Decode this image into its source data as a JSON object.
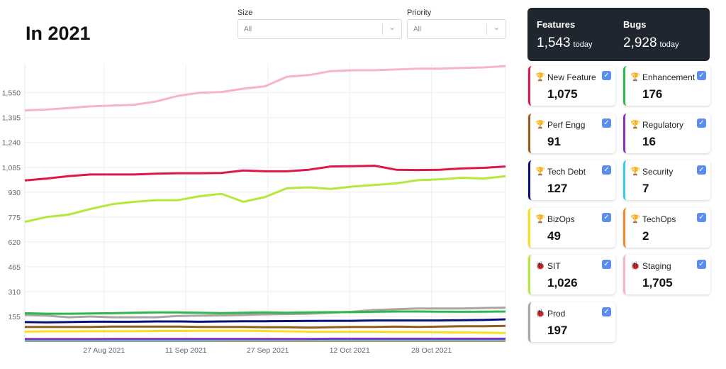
{
  "title": "In 2021",
  "filters": [
    {
      "label": "Size",
      "value": "All"
    },
    {
      "label": "Priority",
      "value": "All"
    }
  ],
  "summary": {
    "features_label": "Features",
    "features_value": "1,543",
    "bugs_label": "Bugs",
    "bugs_value": "2,928",
    "today": "today"
  },
  "cards": [
    {
      "name": "New Feature",
      "value": "1,075",
      "color": "#e0174a",
      "icon": "trophy-icon"
    },
    {
      "name": "Enhancement",
      "value": "176",
      "color": "#2eb84b",
      "icon": "trophy-icon"
    },
    {
      "name": "Perf Engg",
      "value": "91",
      "color": "#9a5a1e",
      "icon": "trophy-icon"
    },
    {
      "name": "Regulatory",
      "value": "16",
      "color": "#8e2fb8",
      "icon": "trophy-icon"
    },
    {
      "name": "Tech Debt",
      "value": "127",
      "color": "#0b0f7a",
      "icon": "trophy-icon"
    },
    {
      "name": "Security",
      "value": "7",
      "color": "#37cbe8",
      "icon": "trophy-icon"
    },
    {
      "name": "BizOps",
      "value": "49",
      "color": "#f5e11a",
      "icon": "trophy-icon"
    },
    {
      "name": "TechOps",
      "value": "2",
      "color": "#f08a2a",
      "icon": "trophy-icon"
    },
    {
      "name": "SIT",
      "value": "1,026",
      "color": "#b5e83a",
      "icon": "bug-icon"
    },
    {
      "name": "Staging",
      "value": "1,705",
      "color": "#f7b3c8",
      "icon": "bug-icon"
    },
    {
      "name": "Prod",
      "value": "197",
      "color": "#a6a6a6",
      "icon": "bug-icon"
    }
  ],
  "chart_data": {
    "type": "line",
    "x_start": "2021-08-12",
    "x_step_days": 4,
    "x_range_days": [
      0,
      91
    ],
    "xticks": [
      {
        "label": "27 Aug 2021",
        "day": 15
      },
      {
        "label": "11 Sep 2021",
        "day": 30.5
      },
      {
        "label": "27 Sep 2021",
        "day": 46
      },
      {
        "label": "12 Oct 2021",
        "day": 61.5
      },
      {
        "label": "28 Oct 2021",
        "day": 77
      }
    ],
    "yticks": [
      155,
      310,
      465,
      620,
      775,
      930,
      1085,
      1240,
      1395,
      1550
    ],
    "yticklabels": [
      "155",
      "310",
      "465",
      "620",
      "775",
      "930",
      "1,085",
      "1,240",
      "1,395",
      "1,550"
    ],
    "ylim": [
      0,
      1730
    ],
    "grid": true,
    "series": [
      {
        "name": "Staging",
        "color": "#f7b3c8",
        "values": [
          1440,
          1445,
          1455,
          1465,
          1470,
          1475,
          1495,
          1530,
          1550,
          1555,
          1575,
          1590,
          1650,
          1660,
          1685,
          1690,
          1690,
          1695,
          1700,
          1700,
          1705,
          1708,
          1716
        ]
      },
      {
        "name": "New Feature",
        "color": "#e0174a",
        "values": [
          1003,
          1015,
          1030,
          1040,
          1040,
          1040,
          1045,
          1048,
          1048,
          1050,
          1065,
          1060,
          1060,
          1070,
          1090,
          1092,
          1095,
          1070,
          1068,
          1070,
          1078,
          1082,
          1090
        ]
      },
      {
        "name": "SIT",
        "color": "#b5e83a",
        "values": [
          745,
          775,
          790,
          825,
          855,
          870,
          880,
          880,
          905,
          920,
          870,
          900,
          955,
          960,
          950,
          965,
          975,
          985,
          1005,
          1010,
          1020,
          1015,
          1030
        ]
      },
      {
        "name": "Enhancement",
        "color": "#2eb84b",
        "values": [
          175,
          172,
          172,
          174,
          175,
          178,
          180,
          180,
          178,
          176,
          178,
          180,
          178,
          180,
          182,
          182,
          184,
          186,
          186,
          185,
          184,
          185,
          186
        ]
      },
      {
        "name": "Prod",
        "color": "#a6a6a6",
        "values": [
          165,
          160,
          150,
          155,
          150,
          150,
          150,
          158,
          160,
          162,
          165,
          168,
          170,
          172,
          178,
          185,
          195,
          200,
          205,
          205,
          205,
          208,
          210
        ]
      },
      {
        "name": "Tech Debt",
        "color": "#0b0f7a",
        "values": [
          120,
          118,
          120,
          122,
          122,
          122,
          124,
          124,
          122,
          124,
          125,
          125,
          126,
          127,
          128,
          128,
          130,
          130,
          130,
          130,
          132,
          133,
          137
        ]
      },
      {
        "name": "Perf Engg",
        "color": "#9a5a1e",
        "values": [
          90,
          90,
          90,
          90,
          92,
          92,
          92,
          92,
          90,
          90,
          90,
          88,
          88,
          86,
          88,
          90,
          90,
          92,
          90,
          92,
          94,
          94,
          96
        ]
      },
      {
        "name": "BizOps",
        "color": "#f5e11a",
        "values": [
          60,
          62,
          62,
          63,
          63,
          63,
          64,
          64,
          66,
          66,
          66,
          64,
          62,
          60,
          60,
          60,
          60,
          58,
          58,
          56,
          55,
          54,
          52
        ]
      },
      {
        "name": "Regulatory",
        "color": "#8e2fb8",
        "values": [
          14,
          14,
          14,
          14,
          15,
          15,
          15,
          15,
          15,
          15,
          15,
          15,
          15,
          15,
          16,
          16,
          16,
          16,
          16,
          16,
          16,
          16,
          16
        ]
      },
      {
        "name": "Security",
        "color": "#37cbe8",
        "values": [
          6,
          6,
          6,
          6,
          6,
          6,
          6,
          6,
          6,
          7,
          7,
          7,
          7,
          7,
          7,
          7,
          7,
          7,
          7,
          7,
          7,
          7,
          7
        ]
      },
      {
        "name": "TechOps",
        "color": "#f08a2a",
        "values": [
          2,
          2,
          2,
          2,
          2,
          2,
          2,
          2,
          2,
          2,
          2,
          2,
          2,
          2,
          2,
          2,
          2,
          2,
          2,
          2,
          2,
          2,
          2
        ]
      }
    ]
  }
}
